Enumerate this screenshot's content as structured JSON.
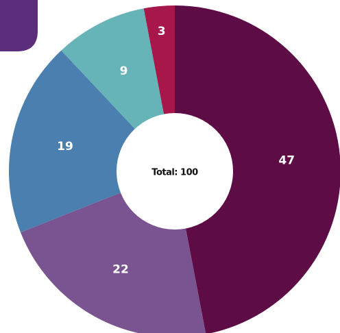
{
  "chart_data": {
    "type": "donut",
    "center_text": "Total: 100",
    "values": [
      47,
      22,
      19,
      9,
      3
    ],
    "colors": [
      "#5e0c45",
      "#7a5490",
      "#4a7fb0",
      "#66b3b8",
      "#a8174a"
    ]
  }
}
